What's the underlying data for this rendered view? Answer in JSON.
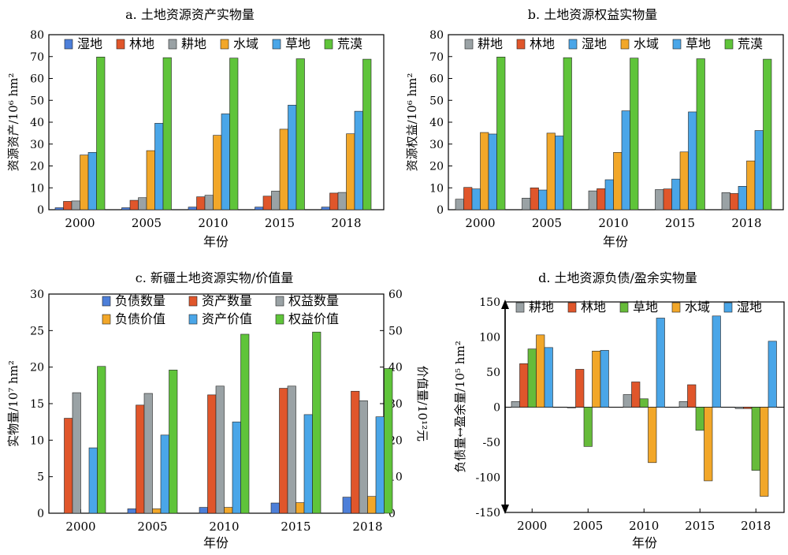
{
  "colors": {
    "wetland": "#4d7fd9",
    "forest": "#e0562b",
    "cropland": "#9aa2a5",
    "water": "#f2a729",
    "grassland": "#4aa6e8",
    "desert": "#5fc43a",
    "neg_green": "#66bb3a"
  },
  "chart_data": [
    {
      "id": "a",
      "type": "bar",
      "title": "a. 土地资源资产实物量",
      "xlabel": "年份",
      "ylabel": "资源资产/10⁶ hm²",
      "ylim": [
        0,
        80
      ],
      "yticks": [
        0,
        10,
        20,
        30,
        40,
        50,
        60,
        70,
        80
      ],
      "categories": [
        "2000",
        "2005",
        "2010",
        "2015",
        "2018"
      ],
      "legend_placement": "top",
      "series": [
        {
          "name": "湿地",
          "color": "#4d7fd9",
          "values": [
            0.9,
            0.9,
            1.2,
            1.2,
            1.2
          ]
        },
        {
          "name": "林地",
          "color": "#e0562b",
          "values": [
            3.8,
            4.3,
            5.9,
            6.2,
            7.6
          ]
        },
        {
          "name": "耕地",
          "color": "#9aa2a5",
          "values": [
            4.0,
            5.5,
            6.6,
            8.5,
            7.9
          ]
        },
        {
          "name": "水域",
          "color": "#f2a729",
          "values": [
            25.0,
            27.0,
            34.0,
            36.8,
            34.7
          ]
        },
        {
          "name": "草地",
          "color": "#4aa6e8",
          "values": [
            26.2,
            39.5,
            43.8,
            47.8,
            45.0
          ]
        },
        {
          "name": "荒漠",
          "color": "#5fc43a",
          "values": [
            69.8,
            69.5,
            69.3,
            69.0,
            68.8
          ]
        }
      ]
    },
    {
      "id": "b",
      "type": "bar",
      "title": "b. 土地资源权益实物量",
      "xlabel": "年份",
      "ylabel": "资源权益/10⁶ hm²",
      "ylim": [
        0,
        80
      ],
      "yticks": [
        0,
        10,
        20,
        30,
        40,
        50,
        60,
        70,
        80
      ],
      "categories": [
        "2000",
        "2005",
        "2010",
        "2015",
        "2018"
      ],
      "legend_placement": "top",
      "series": [
        {
          "name": "耕地",
          "color": "#9aa2a5",
          "values": [
            4.8,
            5.3,
            8.6,
            9.2,
            7.8
          ]
        },
        {
          "name": "林地",
          "color": "#e0562b",
          "values": [
            10.2,
            10.0,
            9.6,
            9.5,
            7.4
          ]
        },
        {
          "name": "湿地",
          "color": "#4aa6e8",
          "values": [
            9.5,
            9.0,
            13.7,
            14.0,
            10.7
          ]
        },
        {
          "name": "水域",
          "color": "#f2a729",
          "values": [
            35.3,
            35.0,
            26.2,
            26.4,
            22.3
          ]
        },
        {
          "name": "草地",
          "color": "#4aa6e8",
          "values": [
            34.6,
            33.7,
            45.2,
            44.7,
            36.2
          ]
        },
        {
          "name": "荒漠",
          "color": "#5fc43a",
          "values": [
            69.8,
            69.5,
            69.3,
            69.0,
            68.8
          ]
        }
      ]
    },
    {
      "id": "c",
      "type": "bar",
      "title": "c. 新疆土地资源实物/价值量",
      "xlabel": "年份",
      "ylabel": "实物量/10⁷ hm²",
      "ylabel_right": "价值量/10¹²元",
      "ylim": [
        0,
        30
      ],
      "ylim_right": [
        0,
        60
      ],
      "yticks": [
        0,
        5,
        10,
        15,
        20,
        25,
        30
      ],
      "yticks_right": [
        0,
        10,
        20,
        30,
        40,
        50,
        60
      ],
      "categories": [
        "2000",
        "2005",
        "2010",
        "2015",
        "2018"
      ],
      "legend_placement": "top",
      "series": [
        {
          "name": "负债数量",
          "color": "#4d7fd9",
          "axis": "left",
          "values": [
            0,
            0.6,
            0.8,
            1.4,
            2.2
          ]
        },
        {
          "name": "资产数量",
          "color": "#e0562b",
          "axis": "left",
          "values": [
            13.0,
            14.8,
            16.2,
            17.1,
            16.7
          ]
        },
        {
          "name": "权益数量",
          "color": "#9aa2a5",
          "axis": "left",
          "values": [
            16.5,
            16.4,
            17.4,
            17.4,
            15.4
          ]
        },
        {
          "name": "负债价值",
          "color": "#f2a729",
          "axis": "right",
          "values": [
            0,
            1.2,
            1.6,
            2.9,
            4.6
          ]
        },
        {
          "name": "资产价值",
          "color": "#4aa6e8",
          "axis": "right",
          "values": [
            17.9,
            21.4,
            25.0,
            27.0,
            26.4
          ]
        },
        {
          "name": "权益价值",
          "color": "#5fc43a",
          "axis": "right",
          "values": [
            40.2,
            39.2,
            49.0,
            49.6,
            39.6
          ]
        }
      ]
    },
    {
      "id": "d",
      "type": "bar",
      "title": "d. 土地资源负债/盈余实物量",
      "xlabel": "年份",
      "ylabel": "负债量↔盈余量/10⁵ hm²",
      "ylim": [
        -150,
        150
      ],
      "yticks": [
        -150,
        -100,
        -50,
        0,
        50,
        100,
        150
      ],
      "categories": [
        "2000",
        "2005",
        "2010",
        "2015",
        "2018"
      ],
      "legend_placement": "top",
      "series": [
        {
          "name": "耕地",
          "color": "#9aa2a5",
          "values": [
            8,
            -1,
            18,
            8,
            -2
          ]
        },
        {
          "name": "林地",
          "color": "#e0562b",
          "values": [
            62,
            54,
            36,
            32,
            -2
          ]
        },
        {
          "name": "草地",
          "color": "#66bb3a",
          "values": [
            83,
            -56,
            12,
            -33,
            -90
          ]
        },
        {
          "name": "水域",
          "color": "#f2a729",
          "values": [
            103,
            80,
            -79,
            -105,
            -127
          ]
        },
        {
          "name": "湿地",
          "color": "#4aa6e8",
          "values": [
            85,
            81,
            127,
            130,
            94
          ]
        }
      ]
    }
  ]
}
